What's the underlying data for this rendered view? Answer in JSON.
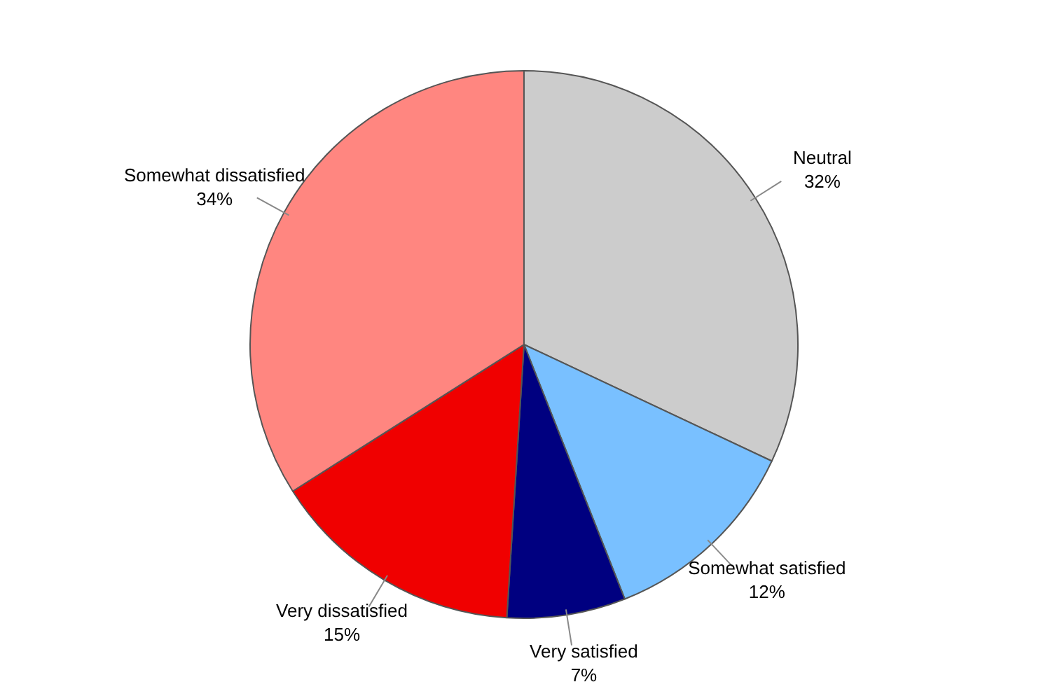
{
  "chart_data": {
    "type": "pie",
    "categories": [
      "Neutral",
      "Somewhat satisfied",
      "Very satisfied",
      "Very dissatisfied",
      "Somewhat dissatisfied"
    ],
    "values": [
      32,
      12,
      7,
      15,
      34
    ],
    "colors": [
      "#cccccc",
      "#79c0ff",
      "#000080",
      "#f00000",
      "#ff8680"
    ],
    "value_labels": [
      "32%",
      "12%",
      "7%",
      "15%",
      "34%"
    ],
    "legend": false
  }
}
